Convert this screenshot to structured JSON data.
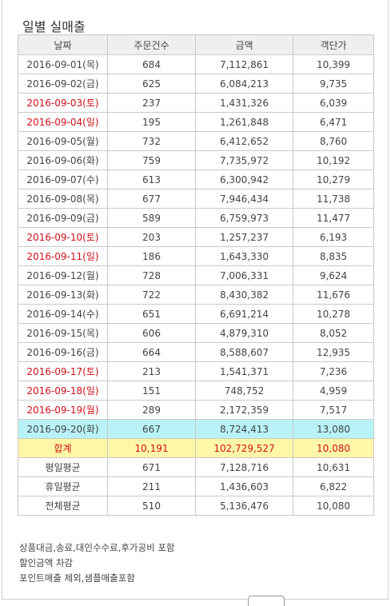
{
  "page": {
    "title": "일별 실매출"
  },
  "table": {
    "headers": [
      "날짜",
      "주문건수",
      "금액",
      "객단가"
    ],
    "rows": [
      {
        "date": "2016-09-01(목)",
        "orders": "684",
        "amount": "7,112,861",
        "avg": "10,399",
        "weekend": false
      },
      {
        "date": "2016-09-02(금)",
        "orders": "625",
        "amount": "6,084,213",
        "avg": "9,735",
        "weekend": false
      },
      {
        "date": "2016-09-03(토)",
        "orders": "237",
        "amount": "1,431,326",
        "avg": "6,039",
        "weekend": true
      },
      {
        "date": "2016-09-04(일)",
        "orders": "195",
        "amount": "1,261,848",
        "avg": "6,471",
        "weekend": true
      },
      {
        "date": "2016-09-05(월)",
        "orders": "732",
        "amount": "6,412,652",
        "avg": "8,760",
        "weekend": false
      },
      {
        "date": "2016-09-06(화)",
        "orders": "759",
        "amount": "7,735,972",
        "avg": "10,192",
        "weekend": false
      },
      {
        "date": "2016-09-07(수)",
        "orders": "613",
        "amount": "6,300,942",
        "avg": "10,279",
        "weekend": false
      },
      {
        "date": "2016-09-08(목)",
        "orders": "677",
        "amount": "7,946,434",
        "avg": "11,738",
        "weekend": false
      },
      {
        "date": "2016-09-09(금)",
        "orders": "589",
        "amount": "6,759,973",
        "avg": "11,477",
        "weekend": false
      },
      {
        "date": "2016-09-10(토)",
        "orders": "203",
        "amount": "1,257,237",
        "avg": "6,193",
        "weekend": true
      },
      {
        "date": "2016-09-11(일)",
        "orders": "186",
        "amount": "1,643,330",
        "avg": "8,835",
        "weekend": true
      },
      {
        "date": "2016-09-12(월)",
        "orders": "728",
        "amount": "7,006,331",
        "avg": "9,624",
        "weekend": false
      },
      {
        "date": "2016-09-13(화)",
        "orders": "722",
        "amount": "8,430,382",
        "avg": "11,676",
        "weekend": false
      },
      {
        "date": "2016-09-14(수)",
        "orders": "651",
        "amount": "6,691,214",
        "avg": "10,278",
        "weekend": false
      },
      {
        "date": "2016-09-15(목)",
        "orders": "606",
        "amount": "4,879,310",
        "avg": "8,052",
        "weekend": false
      },
      {
        "date": "2016-09-16(금)",
        "orders": "664",
        "amount": "8,588,607",
        "avg": "12,935",
        "weekend": false
      },
      {
        "date": "2016-09-17(토)",
        "orders": "213",
        "amount": "1,541,371",
        "avg": "7,236",
        "weekend": true
      },
      {
        "date": "2016-09-18(일)",
        "orders": "151",
        "amount": "748,752",
        "avg": "4,959",
        "weekend": true
      },
      {
        "date": "2016-09-19(월)",
        "orders": "289",
        "amount": "2,172,359",
        "avg": "7,517",
        "weekend": true
      },
      {
        "date": "2016-09-20(화)",
        "orders": "667",
        "amount": "8,724,413",
        "avg": "13,080",
        "weekend": false,
        "today": true
      }
    ],
    "total": {
      "label": "합계",
      "orders": "10,191",
      "amount": "102,729,527",
      "avg": "10,080"
    },
    "summary": [
      {
        "label": "평일평균",
        "orders": "671",
        "amount": "7,128,716",
        "avg": "10,631"
      },
      {
        "label": "휴일평균",
        "orders": "211",
        "amount": "1,436,603",
        "avg": "6,822"
      },
      {
        "label": "전체평균",
        "orders": "510",
        "amount": "5,136,476",
        "avg": "10,080"
      }
    ]
  },
  "notes": [
    "상품대금,송료,대인수수료,후가공비 포함",
    "할인금액 차감",
    "포인트매출 제외,샘플매출포함"
  ],
  "colors": {
    "weekend": "#d0111a",
    "today_bg": "#b9f3f7",
    "total_bg": "#fff7a8",
    "header_bg": "#efefef"
  }
}
